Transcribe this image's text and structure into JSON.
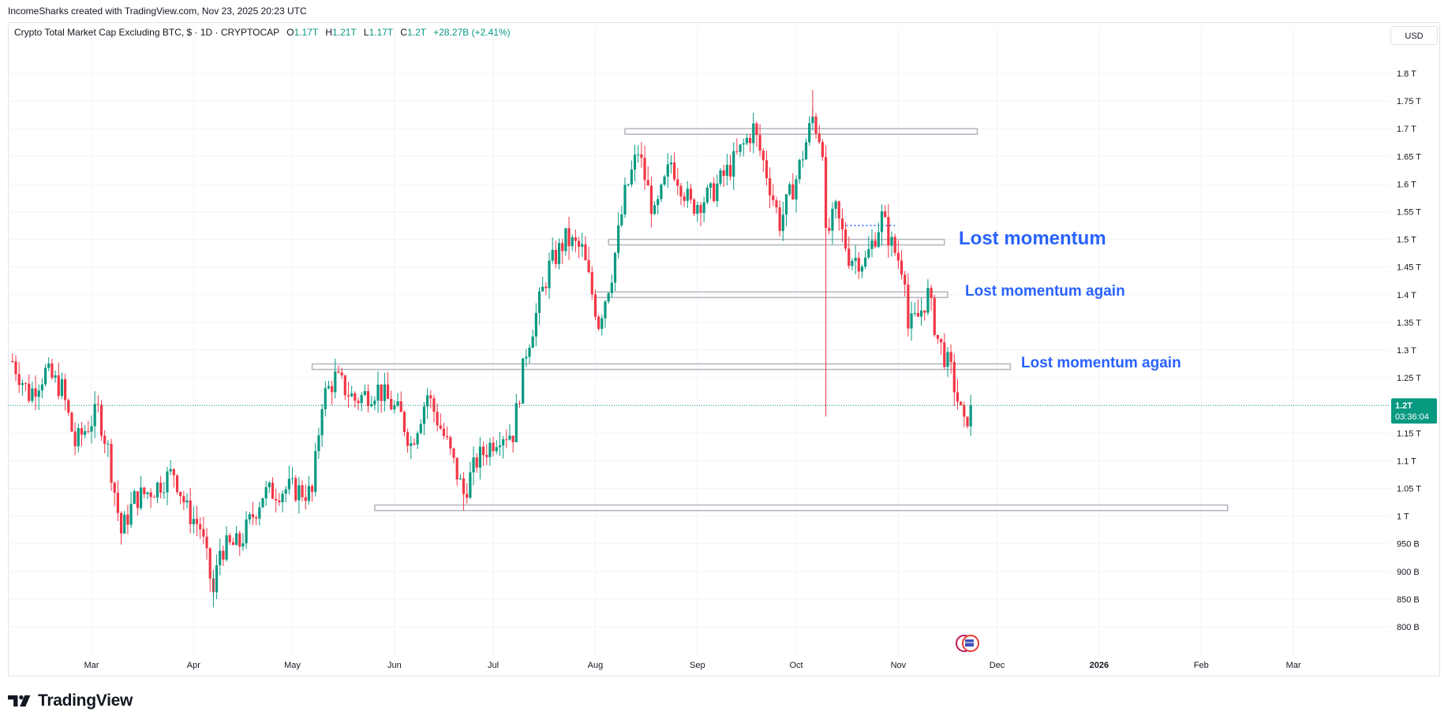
{
  "credit": "IncomeSharks created with TradingView.com, Nov 23, 2025 20:23 UTC",
  "symbol_line": {
    "name": "Crypto Total Market Cap Excluding BTC, $ · 1D · CRYPTOCAP",
    "open_label": "O",
    "open": "1.17T",
    "high_label": "H",
    "high": "1.21T",
    "low_label": "L",
    "low": "1.17T",
    "close_label": "C",
    "close": "1.2T",
    "change": "+28.27B (+2.41%)"
  },
  "currency": "USD",
  "brand": "TradingView",
  "colors": {
    "up": "#089981",
    "down": "#f23645",
    "annotation": "#2962ff",
    "price_tag": "#089981",
    "grid": "#f0f3fa",
    "zone_stroke": "#b2b5be"
  },
  "price_tag": {
    "price": "1.2T",
    "countdown": "03:36:04"
  },
  "annotations": [
    {
      "text": "Lost momentum"
    },
    {
      "text": "Lost momentum again"
    },
    {
      "text": "Lost momentum again"
    }
  ],
  "event_icons": [
    "flag-icon",
    "flag-icon"
  ],
  "chart_data": {
    "type": "candlestick",
    "title": "Crypto Total Market Cap Excluding BTC, $ · 1D · CRYPTOCAP",
    "y_unit": "USD",
    "ylim": [
      0.77,
      1.85
    ],
    "y_ticks": [
      {
        "value": 0.8,
        "label": "800 B"
      },
      {
        "value": 0.85,
        "label": "850 B"
      },
      {
        "value": 0.9,
        "label": "900 B"
      },
      {
        "value": 0.95,
        "label": "950 B"
      },
      {
        "value": 1.0,
        "label": "1 T"
      },
      {
        "value": 1.05,
        "label": "1.05 T"
      },
      {
        "value": 1.1,
        "label": "1.1 T"
      },
      {
        "value": 1.15,
        "label": "1.15 T"
      },
      {
        "value": 1.2,
        "label": "1.2 T"
      },
      {
        "value": 1.25,
        "label": "1.25 T"
      },
      {
        "value": 1.3,
        "label": "1.3 T"
      },
      {
        "value": 1.35,
        "label": "1.35 T"
      },
      {
        "value": 1.4,
        "label": "1.4 T"
      },
      {
        "value": 1.45,
        "label": "1.45 T"
      },
      {
        "value": 1.5,
        "label": "1.5 T"
      },
      {
        "value": 1.55,
        "label": "1.55 T"
      },
      {
        "value": 1.6,
        "label": "1.6 T"
      },
      {
        "value": 1.65,
        "label": "1.65 T"
      },
      {
        "value": 1.7,
        "label": "1.7 T"
      },
      {
        "value": 1.75,
        "label": "1.75 T"
      },
      {
        "value": 1.8,
        "label": "1.8 T"
      }
    ],
    "x_ticks": [
      {
        "date": "2025-03-01",
        "label": "Mar"
      },
      {
        "date": "2025-04-01",
        "label": "Apr"
      },
      {
        "date": "2025-05-01",
        "label": "May"
      },
      {
        "date": "2025-06-01",
        "label": "Jun"
      },
      {
        "date": "2025-07-01",
        "label": "Jul"
      },
      {
        "date": "2025-08-01",
        "label": "Aug"
      },
      {
        "date": "2025-09-01",
        "label": "Sep"
      },
      {
        "date": "2025-10-01",
        "label": "Oct"
      },
      {
        "date": "2025-11-01",
        "label": "Nov"
      },
      {
        "date": "2025-12-01",
        "label": "Dec"
      },
      {
        "date": "2026-01-01",
        "label": "2026"
      },
      {
        "date": "2026-02-01",
        "label": "Feb"
      },
      {
        "date": "2026-03-01",
        "label": "Mar"
      }
    ],
    "x_range": [
      "2025-02-05",
      "2026-03-31"
    ],
    "current_price": 1.2,
    "anchors": [
      {
        "date": "2025-02-05",
        "price": 1.28
      },
      {
        "date": "2025-02-10",
        "price": 1.22
      },
      {
        "date": "2025-02-15",
        "price": 1.26
      },
      {
        "date": "2025-02-20",
        "price": 1.23
      },
      {
        "date": "2025-02-24",
        "price": 1.13
      },
      {
        "date": "2025-03-03",
        "price": 1.19
      },
      {
        "date": "2025-03-06",
        "price": 1.12
      },
      {
        "date": "2025-03-10",
        "price": 0.97
      },
      {
        "date": "2025-03-14",
        "price": 1.03
      },
      {
        "date": "2025-03-20",
        "price": 1.05
      },
      {
        "date": "2025-03-26",
        "price": 1.08
      },
      {
        "date": "2025-03-30",
        "price": 1.01
      },
      {
        "date": "2025-04-03",
        "price": 0.98
      },
      {
        "date": "2025-04-07",
        "price": 0.86
      },
      {
        "date": "2025-04-09",
        "price": 0.94
      },
      {
        "date": "2025-04-15",
        "price": 0.95
      },
      {
        "date": "2025-04-22",
        "price": 1.04
      },
      {
        "date": "2025-04-30",
        "price": 1.05
      },
      {
        "date": "2025-05-07",
        "price": 1.04
      },
      {
        "date": "2025-05-10",
        "price": 1.21
      },
      {
        "date": "2025-05-14",
        "price": 1.25
      },
      {
        "date": "2025-05-20",
        "price": 1.21
      },
      {
        "date": "2025-05-27",
        "price": 1.23
      },
      {
        "date": "2025-06-03",
        "price": 1.18
      },
      {
        "date": "2025-06-06",
        "price": 1.13
      },
      {
        "date": "2025-06-11",
        "price": 1.22
      },
      {
        "date": "2025-06-17",
        "price": 1.13
      },
      {
        "date": "2025-06-22",
        "price": 1.04
      },
      {
        "date": "2025-06-26",
        "price": 1.1
      },
      {
        "date": "2025-07-03",
        "price": 1.15
      },
      {
        "date": "2025-07-07",
        "price": 1.15
      },
      {
        "date": "2025-07-11",
        "price": 1.3
      },
      {
        "date": "2025-07-18",
        "price": 1.45
      },
      {
        "date": "2025-07-23",
        "price": 1.5
      },
      {
        "date": "2025-07-28",
        "price": 1.48
      },
      {
        "date": "2025-08-02",
        "price": 1.35
      },
      {
        "date": "2025-08-06",
        "price": 1.44
      },
      {
        "date": "2025-08-10",
        "price": 1.58
      },
      {
        "date": "2025-08-14",
        "price": 1.66
      },
      {
        "date": "2025-08-19",
        "price": 1.54
      },
      {
        "date": "2025-08-24",
        "price": 1.64
      },
      {
        "date": "2025-08-30",
        "price": 1.56
      },
      {
        "date": "2025-09-05",
        "price": 1.58
      },
      {
        "date": "2025-09-12",
        "price": 1.64
      },
      {
        "date": "2025-09-18",
        "price": 1.7
      },
      {
        "date": "2025-09-22",
        "price": 1.62
      },
      {
        "date": "2025-09-26",
        "price": 1.53
      },
      {
        "date": "2025-10-01",
        "price": 1.61
      },
      {
        "date": "2025-10-06",
        "price": 1.72
      },
      {
        "date": "2025-10-09",
        "price": 1.67
      },
      {
        "date": "2025-10-10",
        "price": 1.5
      },
      {
        "date": "2025-10-13",
        "price": 1.55
      },
      {
        "date": "2025-10-17",
        "price": 1.47
      },
      {
        "date": "2025-10-22",
        "price": 1.46
      },
      {
        "date": "2025-10-27",
        "price": 1.54
      },
      {
        "date": "2025-10-30",
        "price": 1.49
      },
      {
        "date": "2025-11-03",
        "price": 1.44
      },
      {
        "date": "2025-11-04",
        "price": 1.34
      },
      {
        "date": "2025-11-07",
        "price": 1.36
      },
      {
        "date": "2025-11-10",
        "price": 1.4
      },
      {
        "date": "2025-11-13",
        "price": 1.32
      },
      {
        "date": "2025-11-17",
        "price": 1.26
      },
      {
        "date": "2025-11-21",
        "price": 1.16
      },
      {
        "date": "2025-11-23",
        "price": 1.2
      }
    ],
    "zones": [
      {
        "from": "2025-08-10",
        "to": "2025-11-25",
        "top": 1.7,
        "bottom": 1.69
      },
      {
        "from": "2025-08-05",
        "to": "2025-11-15",
        "top": 1.5,
        "bottom": 1.49
      },
      {
        "from": "2025-08-01",
        "to": "2025-11-16",
        "top": 1.405,
        "bottom": 1.395
      },
      {
        "from": "2025-05-07",
        "to": "2025-12-05",
        "top": 1.275,
        "bottom": 1.265
      },
      {
        "from": "2025-05-26",
        "to": "2026-02-09",
        "top": 1.02,
        "bottom": 1.01
      }
    ],
    "annotation_levels": [
      1.495,
      1.4,
      1.27
    ],
    "dotted_level": {
      "price": 1.525,
      "from": "2025-10-15",
      "to": "2025-10-31"
    }
  }
}
